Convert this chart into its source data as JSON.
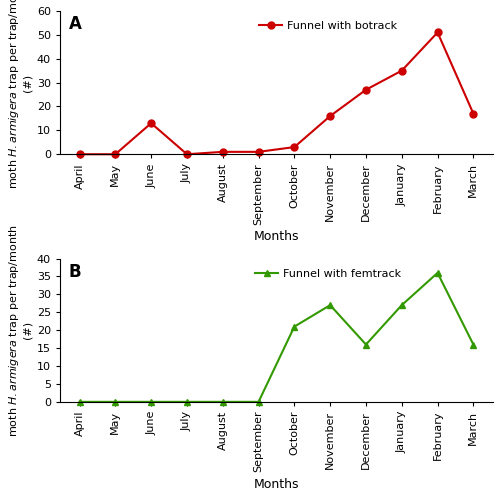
{
  "months": [
    "April",
    "May",
    "June",
    "July",
    "August",
    "September",
    "October",
    "November",
    "December",
    "January",
    "February",
    "March"
  ],
  "panel_a": {
    "values": [
      0,
      0,
      13,
      0,
      1,
      1,
      3,
      16,
      27,
      35,
      51,
      17
    ],
    "color": "#cc0000",
    "label": "Funnel with botrack",
    "marker": "o",
    "ylim": [
      0,
      60
    ],
    "yticks": [
      0,
      10,
      20,
      30,
      40,
      50,
      60
    ],
    "panel_label": "A"
  },
  "panel_b": {
    "values": [
      0,
      0,
      0,
      0,
      0,
      0,
      21,
      27,
      16,
      27,
      36,
      16
    ],
    "color": "#339900",
    "label": "Funnel with femtrack",
    "marker": "^",
    "ylim": [
      0,
      40
    ],
    "yticks": [
      0,
      5,
      10,
      15,
      20,
      25,
      30,
      35,
      40
    ],
    "panel_label": "B"
  },
  "xlabel": "Months",
  "bg_color": "#ffffff",
  "linewidth": 1.5,
  "markersize": 5,
  "tick_fontsize": 8,
  "label_fontsize": 8,
  "legend_fontsize": 8,
  "panel_label_fontsize": 12
}
